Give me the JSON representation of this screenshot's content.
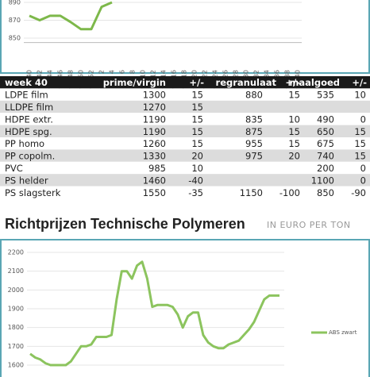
{
  "chart_data": [
    {
      "type": "line",
      "categories": [
        "wk. 40",
        "wk. 42",
        "wk. 44",
        "wk. 46",
        "wk. 48",
        "wk. 50",
        "wk. 52",
        "wk. 2",
        "wk. 4",
        "wk. 6",
        "wk. 8",
        "wk. 10",
        "wk. 12",
        "wk. 14",
        "wk. 16",
        "wk. 18",
        "wk. 20",
        "wk. 22",
        "wk. 24",
        "wk. 26",
        "wk. 28",
        "wk. 30",
        "wk. 32",
        "wk. 34",
        "wk. 36",
        "wk. 38",
        "wk. 40"
      ],
      "series": [
        {
          "color": "#7db84a",
          "values": [
            875,
            870,
            875,
            875,
            868,
            860,
            860,
            885,
            890,
            null,
            null,
            null,
            null,
            null,
            null,
            null,
            null,
            null,
            null,
            null,
            null,
            null,
            null,
            null,
            null,
            null,
            null
          ]
        }
      ],
      "ylim": [
        845,
        895
      ],
      "yticks": [
        850,
        870,
        890
      ]
    },
    {
      "type": "line",
      "title": "Richtprijzen Technische Polymeren",
      "subtitle": "IN EURO PER TON",
      "series": [
        {
          "name": "ABS zwart",
          "color": "#8cc45e",
          "values": [
            1660,
            1640,
            1630,
            1610,
            1600,
            1600,
            1600,
            1600,
            1620,
            1660,
            1700,
            1700,
            1710,
            1750,
            1750,
            1750,
            1760,
            1950,
            2100,
            2100,
            2060,
            2130,
            2150,
            2060,
            1910,
            1920,
            1920,
            1920,
            1910,
            1870,
            1800,
            1860,
            1880,
            1880,
            1760,
            1720,
            1700,
            1690,
            1690,
            1710,
            1720,
            1730,
            1760,
            1790,
            1830,
            1890,
            1950,
            1970,
            1970,
            1970
          ]
        }
      ],
      "ylim": [
        1540,
        2200
      ],
      "yticks": [
        1600,
        1700,
        1800,
        1900,
        2000,
        2100,
        2200
      ],
      "grid": true
    }
  ],
  "table": {
    "header": [
      "week 40",
      "prime/virgin",
      "+/-",
      "regranulaat",
      "+/-",
      "maalgoed",
      "+/-"
    ],
    "rows": [
      [
        "LDPE film",
        "1300",
        "15",
        "880",
        "15",
        "535",
        "10"
      ],
      [
        "LLDPE film",
        "1270",
        "15",
        null,
        null,
        null,
        null
      ],
      [
        "HDPE extr.",
        "1190",
        "15",
        "835",
        "10",
        "490",
        "0"
      ],
      [
        "HDPE spg.",
        "1190",
        "15",
        "875",
        "15",
        "650",
        "15"
      ],
      [
        "PP homo",
        "1260",
        "15",
        "955",
        "15",
        "675",
        "15"
      ],
      [
        "PP copolm.",
        "1330",
        "20",
        "975",
        "20",
        "740",
        "15"
      ],
      [
        "PVC",
        "985",
        "10",
        null,
        null,
        "200",
        "0"
      ],
      [
        "PS helder",
        "1460",
        "-40",
        null,
        null,
        "1100",
        "0"
      ],
      [
        "PS slagsterk",
        "1550",
        "-35",
        "1150",
        "-100",
        "850",
        "-90"
      ]
    ]
  }
}
